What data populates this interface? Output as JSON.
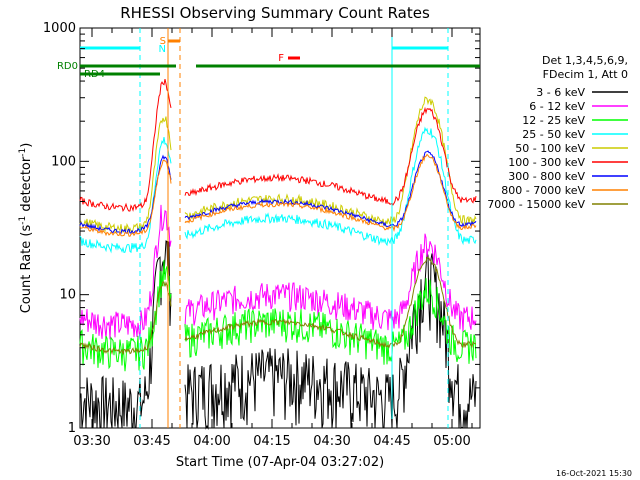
{
  "chart_data": {
    "type": "line",
    "title": "RHESSI Observing Summary Count Rates",
    "xlabel": "Start Time (07-Apr-04 03:27:02)",
    "ylabel_main": "Count Rate (s",
    "ylabel_sup1": "-1",
    "ylabel_mid": " detector",
    "ylabel_sup2": "-1",
    "ylabel_end": ")",
    "yscale": "log",
    "ylim": [
      1,
      1000
    ],
    "xlim_min": [
      0,
      100
    ],
    "x_unit": "minutes from 03:27:02",
    "x_ticks": [
      {
        "label": "03:30",
        "min": 3
      },
      {
        "label": "03:45",
        "min": 18
      },
      {
        "label": "04:00",
        "min": 33
      },
      {
        "label": "04:15",
        "min": 48
      },
      {
        "label": "04:30",
        "min": 63
      },
      {
        "label": "04:45",
        "min": 78
      },
      {
        "label": "05:00",
        "min": 93
      }
    ],
    "y_ticks": [
      {
        "label": "1",
        "value": 1
      },
      {
        "label": "10",
        "value": 10
      },
      {
        "label": "100",
        "value": 100
      },
      {
        "label": "1000",
        "value": 1000
      }
    ],
    "legend_header": [
      "Det 1,3,4,5,6,9,",
      "FDecim 1, Att 0"
    ],
    "series": [
      {
        "name": "3 - 6 keV",
        "color": "#000000"
      },
      {
        "name": "6 - 12 keV",
        "color": "#ff00ff"
      },
      {
        "name": "12 - 25 keV",
        "color": "#00ff00"
      },
      {
        "name": "25 - 50 keV",
        "color": "#00ffff"
      },
      {
        "name": "50 - 100 keV",
        "color": "#cccc00"
      },
      {
        "name": "100 - 300 keV",
        "color": "#ff0000"
      },
      {
        "name": "300 - 800 keV",
        "color": "#0000ff"
      },
      {
        "name": "800 - 7000 keV",
        "color": "#ff8000"
      },
      {
        "name": "7000 - 15000 keV",
        "color": "#808000"
      }
    ],
    "flag_bars": [
      {
        "label": "RD0",
        "color": "#008000",
        "segments": [
          [
            0,
            24
          ],
          [
            29,
            47
          ],
          [
            47,
            69
          ],
          [
            69,
            100
          ]
        ]
      },
      {
        "label": "RD4",
        "color": "#008000",
        "segments": [
          [
            0,
            20
          ]
        ]
      },
      {
        "label": "S",
        "color": "#ff8000",
        "segments": [
          [
            22,
            25
          ]
        ]
      },
      {
        "label": "N",
        "color": "#00ffff",
        "segments": [
          [
            0,
            15
          ],
          [
            78,
            92
          ]
        ]
      },
      {
        "label": "F",
        "color": "#ff0000",
        "segments": [
          [
            52,
            55
          ]
        ]
      }
    ],
    "footer_timestamp": "16-Oct-2021 15:30"
  }
}
